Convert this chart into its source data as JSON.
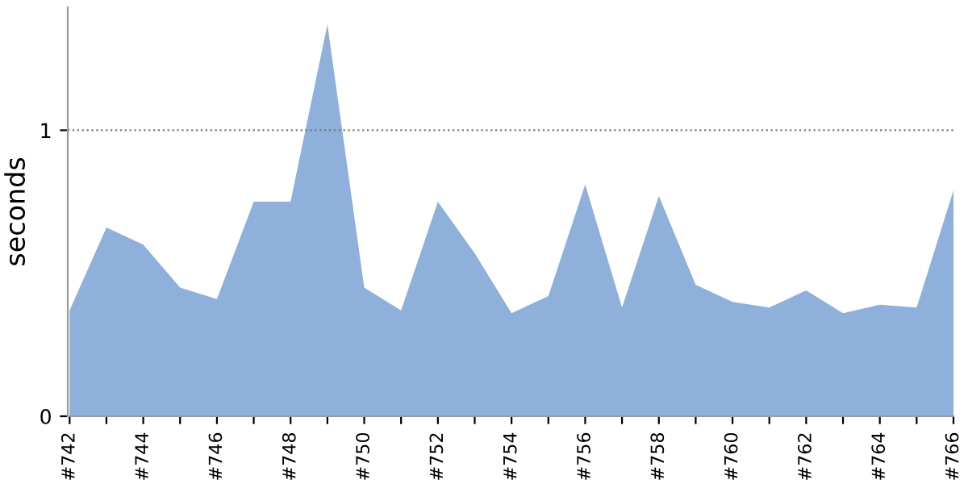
{
  "chart_data": {
    "type": "area",
    "ylabel": "seconds",
    "categories": [
      "#742",
      null,
      "#744",
      null,
      "#746",
      null,
      "#748",
      null,
      "#750",
      null,
      "#752",
      null,
      "#754",
      null,
      "#756",
      null,
      "#758",
      null,
      "#760",
      null,
      "#762",
      null,
      "#764",
      null,
      "#766"
    ],
    "series": [
      {
        "color": "#8eb0da",
        "values": [
          0.37,
          0.66,
          0.6,
          0.45,
          0.41,
          0.75,
          0.75,
          1.37,
          0.45,
          0.37,
          0.75,
          0.57,
          0.36,
          0.42,
          0.81,
          0.38,
          0.77,
          0.46,
          0.4,
          0.38,
          0.44,
          0.36,
          0.39,
          0.38,
          0.79
        ]
      }
    ],
    "ylim": [
      0,
      1.43
    ],
    "yticks": [
      0,
      1
    ],
    "ref_lines": [
      {
        "axis": "y",
        "value": 1,
        "color": "#777777",
        "line_style": "dotted"
      }
    ],
    "grid": false,
    "legend": false
  }
}
